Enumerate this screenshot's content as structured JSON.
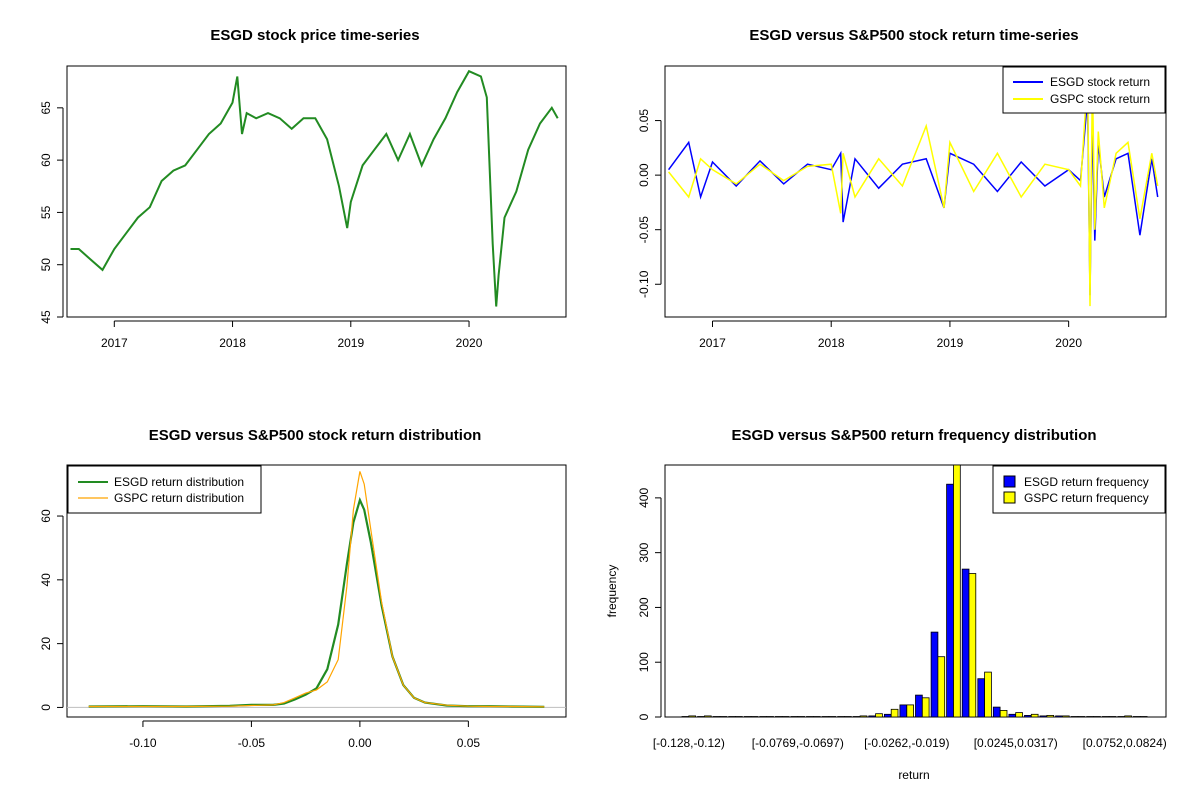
{
  "colors": {
    "price": "#228B22",
    "esgd_return": "#0000FF",
    "gspc_return": "#FFFF00",
    "esgd_density": "#228B22",
    "gspc_density": "#FFA500",
    "esgd_hist": "#0000FF",
    "gspc_hist": "#FFFF00"
  },
  "chart_data": [
    {
      "type": "line",
      "title": "ESGD stock price time-series",
      "xlabel": "",
      "ylabel": "",
      "x_ticks": [
        "2017",
        "2018",
        "2019",
        "2020"
      ],
      "y_ticks": [
        "45",
        "50",
        "55",
        "60",
        "65"
      ],
      "xlim": [
        2016.6,
        2020.82
      ],
      "ylim": [
        45,
        69
      ],
      "series": [
        {
          "x": [
            2016.63,
            2016.7,
            2016.8,
            2016.9,
            2017.0,
            2017.1,
            2017.2,
            2017.3,
            2017.4,
            2017.5,
            2017.6,
            2017.7,
            2017.8,
            2017.9,
            2018.0,
            2018.04,
            2018.08,
            2018.12,
            2018.2,
            2018.3,
            2018.4,
            2018.5,
            2018.6,
            2018.7,
            2018.8,
            2018.9,
            2018.97,
            2019.0,
            2019.1,
            2019.2,
            2019.3,
            2019.4,
            2019.5,
            2019.6,
            2019.7,
            2019.8,
            2019.9,
            2020.0,
            2020.1,
            2020.15,
            2020.2,
            2020.23,
            2020.25,
            2020.3,
            2020.4,
            2020.5,
            2020.6,
            2020.7,
            2020.75
          ],
          "y": [
            51.5,
            51.5,
            50.5,
            49.5,
            51.5,
            53.0,
            54.5,
            55.5,
            58.0,
            59.0,
            59.5,
            61.0,
            62.5,
            63.5,
            65.5,
            68.0,
            62.5,
            64.5,
            64.0,
            64.5,
            64.0,
            63.0,
            64.0,
            64.0,
            62.0,
            57.5,
            53.5,
            56.0,
            59.5,
            61.0,
            62.5,
            60.0,
            62.5,
            59.5,
            62.0,
            64.0,
            66.5,
            68.5,
            68.0,
            66.0,
            52.0,
            46.0,
            49.0,
            54.5,
            57.0,
            61.0,
            63.5,
            65.0,
            64.0
          ]
        }
      ]
    },
    {
      "type": "line",
      "title": "ESGD versus S&P500 stock return time-series",
      "xlabel": "",
      "ylabel": "",
      "x_ticks": [
        "2017",
        "2018",
        "2019",
        "2020"
      ],
      "y_ticks": [
        "-0.10",
        "-0.05",
        "0.00",
        "0.05"
      ],
      "xlim": [
        2016.6,
        2020.82
      ],
      "ylim": [
        -0.13,
        0.1
      ],
      "legend": "top-right",
      "series": [
        {
          "name": "ESGD stock return",
          "x": [
            2016.63,
            2016.8,
            2016.9,
            2017.0,
            2017.2,
            2017.4,
            2017.6,
            2017.8,
            2018.0,
            2018.08,
            2018.1,
            2018.2,
            2018.4,
            2018.6,
            2018.8,
            2018.95,
            2019.0,
            2019.2,
            2019.4,
            2019.6,
            2019.8,
            2020.0,
            2020.1,
            2020.16,
            2020.18,
            2020.2,
            2020.22,
            2020.25,
            2020.3,
            2020.4,
            2020.5,
            2020.6,
            2020.7,
            2020.75
          ],
          "y": [
            0.005,
            0.03,
            -0.02,
            0.012,
            -0.01,
            0.013,
            -0.008,
            0.01,
            0.005,
            0.02,
            -0.043,
            0.015,
            -0.012,
            0.01,
            0.015,
            -0.03,
            0.02,
            0.01,
            -0.015,
            0.012,
            -0.01,
            0.005,
            -0.005,
            0.07,
            -0.11,
            0.055,
            -0.06,
            0.03,
            -0.02,
            0.015,
            0.02,
            -0.055,
            0.015,
            -0.02
          ]
        },
        {
          "name": "GSPC stock return",
          "x": [
            2016.63,
            2016.8,
            2016.9,
            2017.0,
            2017.2,
            2017.4,
            2017.6,
            2017.8,
            2018.0,
            2018.08,
            2018.1,
            2018.2,
            2018.4,
            2018.6,
            2018.8,
            2018.95,
            2019.0,
            2019.2,
            2019.4,
            2019.6,
            2019.8,
            2020.0,
            2020.1,
            2020.16,
            2020.18,
            2020.2,
            2020.22,
            2020.25,
            2020.3,
            2020.4,
            2020.5,
            2020.6,
            2020.7,
            2020.75
          ],
          "y": [
            0.003,
            -0.02,
            0.015,
            0.005,
            -0.008,
            0.01,
            -0.005,
            0.008,
            0.01,
            -0.035,
            0.02,
            -0.02,
            0.015,
            -0.01,
            0.045,
            -0.03,
            0.03,
            -0.015,
            0.02,
            -0.02,
            0.01,
            0.005,
            -0.01,
            0.09,
            -0.12,
            0.09,
            -0.05,
            0.04,
            -0.03,
            0.02,
            0.03,
            -0.04,
            0.02,
            -0.01
          ]
        }
      ]
    },
    {
      "type": "line",
      "title": "ESGD versus S&P500 stock return distribution",
      "xlabel": "",
      "ylabel": "",
      "x_ticks": [
        "-0.10",
        "-0.05",
        "0.00",
        "0.05"
      ],
      "y_ticks": [
        "0",
        "20",
        "40",
        "60"
      ],
      "xlim": [
        -0.135,
        0.095
      ],
      "ylim": [
        -3,
        76
      ],
      "legend": "top-left",
      "series": [
        {
          "name": "ESGD return distribution",
          "x": [
            -0.125,
            -0.1,
            -0.08,
            -0.06,
            -0.05,
            -0.04,
            -0.035,
            -0.03,
            -0.025,
            -0.02,
            -0.015,
            -0.01,
            -0.006,
            -0.003,
            0.0,
            0.002,
            0.005,
            0.01,
            0.015,
            0.02,
            0.025,
            0.03,
            0.04,
            0.05,
            0.06,
            0.07,
            0.085
          ],
          "y": [
            0.3,
            0.4,
            0.3,
            0.5,
            0.8,
            0.8,
            1.2,
            2.5,
            4.0,
            6.0,
            12.0,
            26.0,
            45.0,
            58.0,
            65.0,
            62.0,
            52.0,
            32.0,
            16.0,
            7.0,
            3.0,
            1.5,
            0.6,
            0.4,
            0.4,
            0.3,
            0.2
          ]
        },
        {
          "name": "GSPC return distribution",
          "x": [
            -0.125,
            -0.1,
            -0.08,
            -0.06,
            -0.05,
            -0.04,
            -0.035,
            -0.03,
            -0.025,
            -0.02,
            -0.015,
            -0.01,
            -0.006,
            -0.003,
            0.0,
            0.002,
            0.005,
            0.01,
            0.015,
            0.02,
            0.025,
            0.03,
            0.04,
            0.05,
            0.06,
            0.07,
            0.085
          ],
          "y": [
            0.3,
            0.3,
            0.3,
            0.4,
            0.6,
            0.8,
            1.5,
            3.0,
            4.5,
            5.5,
            8.0,
            15.0,
            38.0,
            62.0,
            74.0,
            70.0,
            56.0,
            33.0,
            16.0,
            7.0,
            3.0,
            1.5,
            0.7,
            0.4,
            0.3,
            0.3,
            0.2
          ]
        }
      ]
    },
    {
      "type": "bar",
      "title": "ESGD versus S&P500 return frequency distribution",
      "xlabel": "return",
      "ylabel": "frequency",
      "x_tick_labels": [
        {
          "label": "[-0.128,-0.12)",
          "bin": 0
        },
        {
          "label": "[-0.0769,-0.0697)",
          "bin": 7
        },
        {
          "label": "[-0.0262,-0.019)",
          "bin": 14
        },
        {
          "label": "[0.0245,0.0317)",
          "bin": 21
        },
        {
          "label": "[0.0752,0.0824)",
          "bin": 28
        }
      ],
      "y_ticks": [
        "0",
        "100",
        "200",
        "300",
        "400"
      ],
      "ylim": [
        0,
        460
      ],
      "legend": "top-right",
      "series": [
        {
          "name": "ESGD return frequency",
          "values": [
            1,
            1,
            1,
            1,
            1,
            1,
            1,
            1,
            1,
            1,
            1,
            1,
            2,
            5,
            22,
            40,
            155,
            425,
            270,
            70,
            18,
            5,
            3,
            2,
            2,
            1,
            1,
            1,
            1,
            1
          ]
        },
        {
          "name": "GSPC return frequency",
          "values": [
            2,
            2,
            1,
            1,
            1,
            1,
            1,
            1,
            1,
            1,
            1,
            2,
            6,
            14,
            22,
            35,
            110,
            460,
            262,
            82,
            12,
            8,
            5,
            3,
            2,
            1,
            1,
            1,
            2,
            1
          ]
        }
      ]
    }
  ]
}
